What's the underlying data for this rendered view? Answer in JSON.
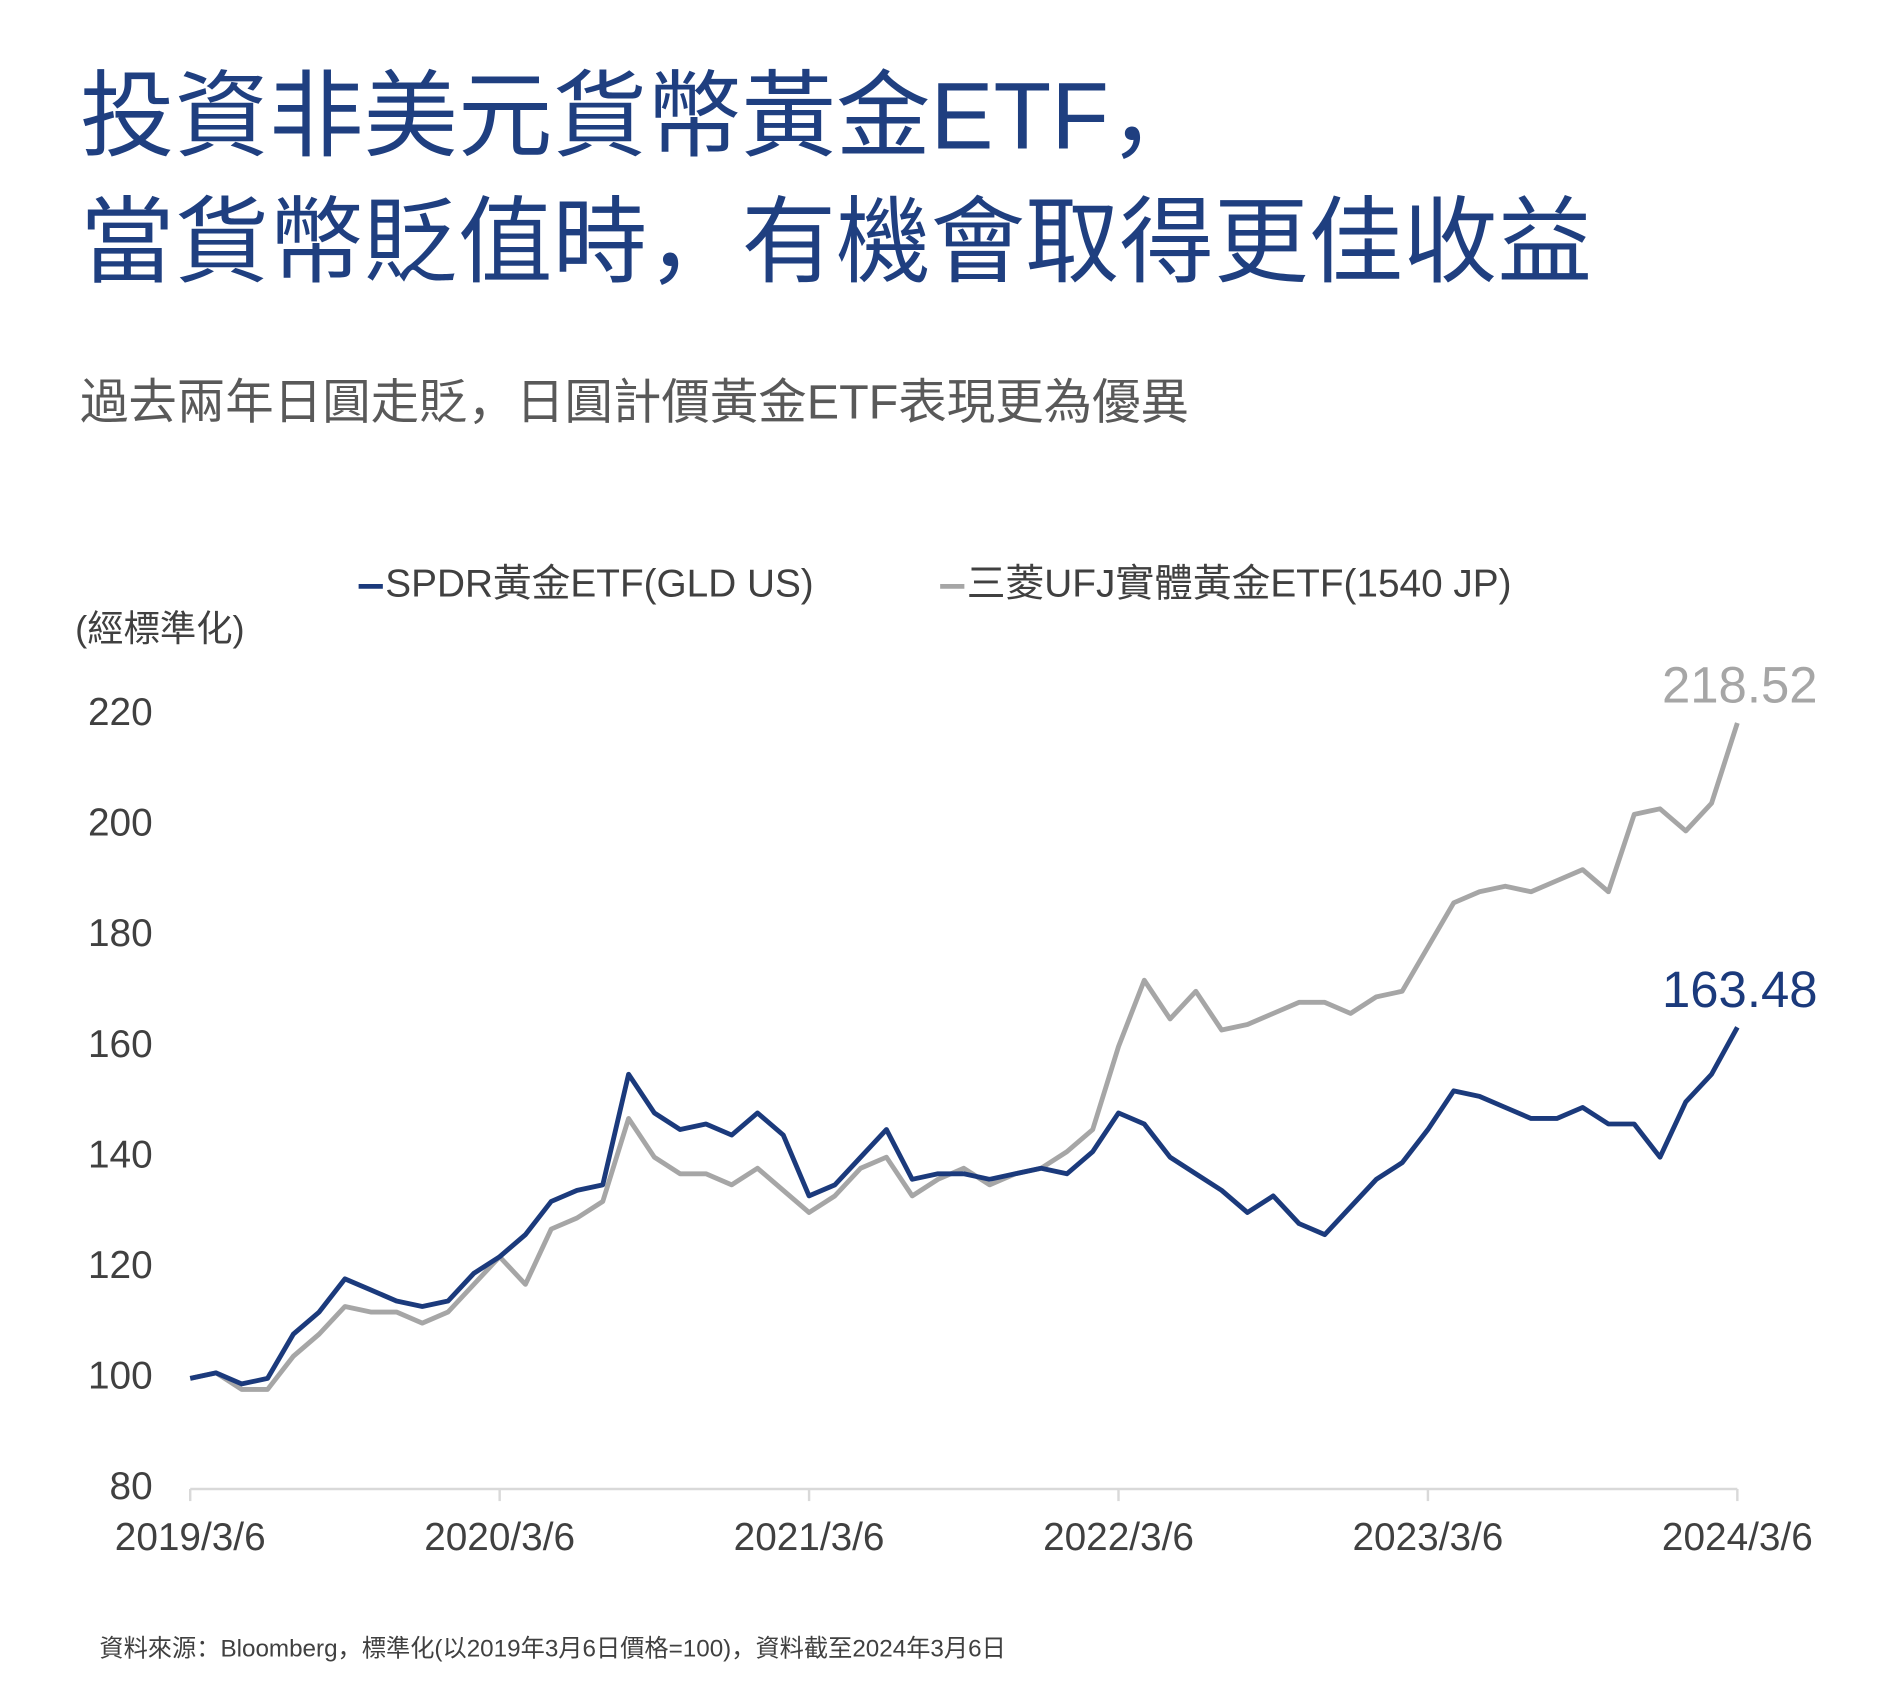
{
  "chart_data": {
    "type": "line",
    "title": [
      "投資非美元貨幣黃金ETF，",
      "當貨幣貶值時，有機會取得更佳收益"
    ],
    "subtitle": "過去兩年日圓走貶，日圓計價黃金ETF表現更為優異",
    "y_axis_label": "(經標準化)",
    "source": "資料來源：Bloomberg，標準化(以2019年3月6日價格=100)，資料截至2024年3月6日",
    "x": [
      0,
      1,
      2,
      3,
      4,
      5,
      6,
      7,
      8,
      9,
      10,
      11,
      12,
      13,
      14,
      15,
      16,
      17,
      18,
      19,
      20,
      21,
      22,
      23,
      24,
      25,
      26,
      27,
      28,
      29,
      30,
      31,
      32,
      33,
      34,
      35,
      36,
      37,
      38,
      39,
      40,
      41,
      42,
      43,
      44,
      45,
      46,
      47,
      48,
      49,
      50,
      51,
      52,
      53,
      54,
      55,
      56,
      57,
      58,
      59,
      60
    ],
    "xlim": [
      0,
      60
    ],
    "xticks": [
      {
        "value": 0,
        "label": "2019/3/6"
      },
      {
        "value": 12,
        "label": "2020/3/6"
      },
      {
        "value": 24,
        "label": "2021/3/6"
      },
      {
        "value": 36,
        "label": "2022/3/6"
      },
      {
        "value": 48,
        "label": "2023/3/6"
      },
      {
        "value": 60,
        "label": "2024/3/6"
      }
    ],
    "ylim": [
      80,
      220
    ],
    "yticks": [
      80,
      100,
      120,
      140,
      160,
      180,
      200,
      220
    ],
    "series": [
      {
        "name": "SPDR黃金ETF(GLD US)",
        "color": "#1b3a7c",
        "values": [
          100,
          101,
          99,
          100,
          108,
          112,
          118,
          116,
          114,
          113,
          114,
          119,
          122,
          126,
          132,
          134,
          135,
          155,
          148,
          145,
          146,
          144,
          148,
          144,
          133,
          135,
          140,
          145,
          136,
          137,
          137,
          136,
          137,
          138,
          137,
          141,
          148,
          146,
          140,
          137,
          134,
          130,
          133,
          128,
          126,
          131,
          136,
          139,
          145,
          152,
          151,
          149,
          147,
          147,
          149,
          146,
          146,
          140,
          150,
          155,
          163.48
        ]
      },
      {
        "name": "三菱UFJ實體黃金ETF(1540 JP)",
        "color": "#a6a6a6",
        "values": [
          100,
          101,
          98,
          98,
          104,
          108,
          113,
          112,
          112,
          110,
          112,
          117,
          122,
          117,
          127,
          129,
          132,
          147,
          140,
          137,
          137,
          135,
          138,
          134,
          130,
          133,
          138,
          140,
          133,
          136,
          138,
          135,
          137,
          138,
          141,
          145,
          160,
          172,
          165,
          170,
          163,
          164,
          166,
          168,
          168,
          166,
          169,
          170,
          178,
          186,
          188,
          189,
          188,
          190,
          192,
          188,
          202,
          203,
          199,
          204,
          218.52
        ]
      }
    ]
  }
}
